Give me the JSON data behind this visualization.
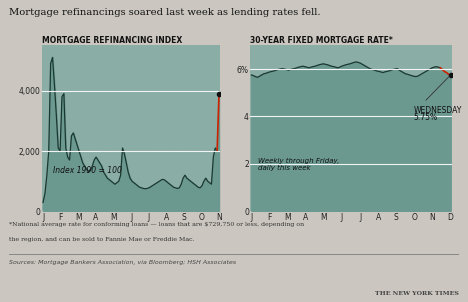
{
  "title": "Mortgage refinancings soared last week as lending rates fell.",
  "bg_color": "#cbc7c0",
  "chart_bg": "#8aada6",
  "left_title": "MORTGAGE REFINANCING INDEX",
  "right_title": "30-YEAR FIXED MORTGAGE RATE*",
  "left_annotation": "Index 1990 = 100",
  "right_annotation_line1": "Weekly through Friday,",
  "right_annotation_line2": "daily this week",
  "wednesday_label1": "WEDNESDAY",
  "wednesday_label2": "5.75%",
  "footnote1": "*National average rate for conforming loans — loans that are $729,750 or less, depending on",
  "footnote2": "the region, and can be sold to Fannie Mae or Freddie Mac.",
  "source": "Sources: Mortgage Bankers Association, via Bloomberg; HSH Associates",
  "nyt_label": "THE NEW YORK TIMES",
  "left_months": [
    "J",
    "F",
    "M",
    "A",
    "M",
    "J",
    "J",
    "A",
    "S",
    "O",
    "N"
  ],
  "right_months": [
    "J",
    "F",
    "M",
    "A",
    "M",
    "J",
    "J",
    "A",
    "S",
    "O",
    "N",
    "D"
  ],
  "left_ylim": [
    0,
    5500
  ],
  "right_ylim": [
    0,
    7.0
  ],
  "left_data": [
    300,
    600,
    1200,
    2000,
    4900,
    5100,
    4200,
    3200,
    2100,
    2000,
    3800,
    3900,
    2100,
    1800,
    1700,
    2500,
    2600,
    2400,
    2200,
    2000,
    1800,
    1600,
    1500,
    1400,
    1300,
    1350,
    1500,
    1700,
    1800,
    1700,
    1600,
    1500,
    1300,
    1200,
    1100,
    1050,
    1000,
    950,
    900,
    950,
    1000,
    1200,
    2100,
    1900,
    1600,
    1300,
    1100,
    1000,
    950,
    900,
    850,
    800,
    780,
    760,
    750,
    760,
    780,
    820,
    860,
    900,
    940,
    980,
    1020,
    1060,
    1050,
    1000,
    950,
    900,
    850,
    800,
    780,
    760,
    780,
    900,
    1100,
    1200,
    1100,
    1050,
    1000,
    950,
    900,
    850,
    800,
    780,
    850,
    1000,
    1100,
    1000,
    950,
    900,
    1800,
    2100,
    2000,
    3900
  ],
  "right_data": [
    5.75,
    5.72,
    5.68,
    5.65,
    5.7,
    5.75,
    5.8,
    5.82,
    5.85,
    5.88,
    5.9,
    5.92,
    5.95,
    5.98,
    6.0,
    6.02,
    6.0,
    5.98,
    5.95,
    5.98,
    6.0,
    6.02,
    6.05,
    6.08,
    6.1,
    6.12,
    6.1,
    6.08,
    6.05,
    6.08,
    6.1,
    6.12,
    6.15,
    6.18,
    6.2,
    6.22,
    6.2,
    6.18,
    6.15,
    6.12,
    6.1,
    6.08,
    6.05,
    6.08,
    6.12,
    6.15,
    6.18,
    6.2,
    6.22,
    6.25,
    6.28,
    6.3,
    6.28,
    6.25,
    6.2,
    6.15,
    6.1,
    6.05,
    6.0,
    5.98,
    5.95,
    5.92,
    5.9,
    5.88,
    5.85,
    5.88,
    5.9,
    5.92,
    5.95,
    5.98,
    6.0,
    6.02,
    5.95,
    5.9,
    5.85,
    5.8,
    5.78,
    5.75,
    5.72,
    5.7,
    5.68,
    5.7,
    5.75,
    5.8,
    5.85,
    5.9,
    5.95,
    6.0,
    6.05,
    6.08,
    6.1,
    6.08,
    6.05,
    5.98,
    5.9,
    5.85,
    5.78,
    5.75
  ],
  "line_color": "#1a3830",
  "red_color": "#cc2200",
  "white_line_color": "#ffffff",
  "dot_color": "#111111"
}
